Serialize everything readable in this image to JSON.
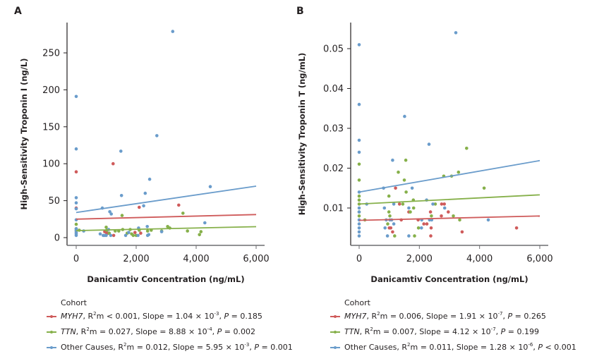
{
  "colors": {
    "MYH7": "#cf5b5b",
    "TTN": "#86b04a",
    "Other": "#6a9ccb",
    "axis": "#231f20"
  },
  "chart_data": [
    {
      "panel": "A",
      "type": "scatter",
      "xlabel": "Danicamtiv Concentration (ng/mL)",
      "ylabel": "High-Sensitivity Troponin I (ng/L)",
      "xlim": [
        0,
        6000
      ],
      "ylim": [
        0,
        290
      ],
      "xticks": [
        0,
        2000,
        4000,
        6000
      ],
      "xtick_labels": [
        "0",
        "2,000",
        "4,000",
        "6,000"
      ],
      "yticks": [
        0,
        50,
        100,
        150,
        200,
        250
      ],
      "ytick_labels": [
        "0",
        "50",
        "100",
        "150",
        "200",
        "250"
      ],
      "grid": false,
      "legend_title": "Cohort",
      "legend_position": "bottom",
      "series": [
        {
          "key": "MYH7",
          "name": "MYH7",
          "stats": {
            "r2m": "< 0.001",
            "slope": "1.04",
            "slope_exp": "-3",
            "p": "= 0.185"
          },
          "fit": [
            [
              0,
              25
            ],
            [
              6000,
              31.2
            ]
          ],
          "points": [
            [
              0,
              89
            ],
            [
              0,
              40
            ],
            [
              1230,
              100
            ],
            [
              2100,
              41
            ],
            [
              3420,
              44
            ],
            [
              950,
              8
            ],
            [
              1020,
              6
            ],
            [
              1060,
              6
            ],
            [
              1250,
              3
            ],
            [
              1960,
              7
            ],
            [
              2150,
              6
            ]
          ]
        },
        {
          "key": "TTN",
          "name": "TTN",
          "stats": {
            "r2m": "= 0.027",
            "slope": "8.88",
            "slope_exp": "-4",
            "p": "= 0.002"
          },
          "fit": [
            [
              0,
              9.5
            ],
            [
              6000,
              14.8
            ]
          ],
          "points": [
            [
              0,
              18
            ],
            [
              0,
              12
            ],
            [
              0,
              9
            ],
            [
              100,
              10
            ],
            [
              1000,
              14
            ],
            [
              1020,
              10
            ],
            [
              1100,
              6
            ],
            [
              1530,
              30
            ],
            [
              1300,
              9
            ],
            [
              1420,
              9
            ],
            [
              1550,
              11
            ],
            [
              1700,
              6
            ],
            [
              1800,
              11
            ],
            [
              1850,
              5
            ],
            [
              1900,
              3
            ],
            [
              2000,
              3
            ],
            [
              2100,
              10
            ],
            [
              2380,
              9
            ],
            [
              2500,
              10
            ],
            [
              2850,
              9
            ],
            [
              3050,
              15
            ],
            [
              3120,
              13
            ],
            [
              3560,
              33
            ],
            [
              3710,
              9
            ],
            [
              4110,
              4
            ],
            [
              4160,
              8
            ]
          ]
        },
        {
          "key": "Other",
          "name": "Other Causes",
          "stats": {
            "r2m": "= 0.012",
            "slope": "5.95",
            "slope_exp": "-3",
            "p": "= 0.001"
          },
          "fit": [
            [
              0,
              34
            ],
            [
              6000,
              69.7
            ]
          ],
          "points": [
            [
              0,
              191
            ],
            [
              0,
              120
            ],
            [
              0,
              54
            ],
            [
              0,
              47
            ],
            [
              0,
              39
            ],
            [
              0,
              24
            ],
            [
              0,
              12
            ],
            [
              0,
              10
            ],
            [
              0,
              7
            ],
            [
              0,
              5
            ],
            [
              0,
              3
            ],
            [
              250,
              9
            ],
            [
              800,
              5
            ],
            [
              870,
              40
            ],
            [
              900,
              3
            ],
            [
              950,
              3
            ],
            [
              1000,
              3
            ],
            [
              1080,
              11
            ],
            [
              1120,
              35
            ],
            [
              1170,
              32
            ],
            [
              1150,
              3
            ],
            [
              1490,
              117
            ],
            [
              1510,
              57
            ],
            [
              1650,
              3
            ],
            [
              1750,
              7
            ],
            [
              2060,
              3
            ],
            [
              2080,
              13
            ],
            [
              2250,
              43
            ],
            [
              2300,
              60
            ],
            [
              2370,
              15
            ],
            [
              2380,
              3
            ],
            [
              2420,
              4
            ],
            [
              2450,
              79
            ],
            [
              2690,
              138
            ],
            [
              2850,
              8
            ],
            [
              3220,
              279
            ],
            [
              4290,
              20
            ],
            [
              4470,
              69
            ]
          ]
        }
      ]
    },
    {
      "panel": "B",
      "type": "scatter",
      "xlabel": "Danicamtiv Concentration (ng/mL)",
      "ylabel": "High-Sensitivity Troponin T (ng/mL)",
      "xlim": [
        0,
        6000
      ],
      "ylim": [
        0,
        0.056
      ],
      "xticks": [
        0,
        2000,
        4000,
        6000
      ],
      "xtick_labels": [
        "0",
        "2,000",
        "4,000",
        "6,000"
      ],
      "yticks": [
        0.01,
        0.02,
        0.03,
        0.04,
        0.05
      ],
      "ytick_labels": [
        "0.01",
        "0.02",
        "0.03",
        "0.04",
        "0.05"
      ],
      "grid": false,
      "legend_title": "Cohort",
      "legend_position": "bottom",
      "series": [
        {
          "key": "MYH7",
          "name": "MYH7",
          "stats": {
            "r2m": "= 0.006",
            "slope": "1.91",
            "slope_exp": "-7",
            "p": "= 0.265"
          },
          "fit": [
            [
              0,
              0.0069
            ],
            [
              6000,
              0.008
            ]
          ],
          "points": [
            [
              1210,
              0.015
            ],
            [
              1340,
              0.011
            ],
            [
              1650,
              0.009
            ],
            [
              2370,
              0.009
            ],
            [
              2740,
              0.011
            ],
            [
              2830,
              0.011
            ],
            [
              2960,
              0.009
            ],
            [
              2730,
              0.008
            ],
            [
              5230,
              0.005
            ],
            [
              3420,
              0.004
            ],
            [
              2380,
              0.003
            ],
            [
              2390,
              0.005
            ],
            [
              1000,
              0.005
            ],
            [
              1050,
              0.005
            ],
            [
              1110,
              0.004
            ],
            [
              1400,
              0.007
            ],
            [
              1960,
              0.007
            ],
            [
              2150,
              0.006
            ],
            [
              2250,
              0.006
            ]
          ]
        },
        {
          "key": "TTN",
          "name": "TTN",
          "stats": {
            "r2m": "= 0.007",
            "slope": "4.12",
            "slope_exp": "-7",
            "p": "= 0.199"
          },
          "fit": [
            [
              0,
              0.011
            ],
            [
              6000,
              0.0133
            ]
          ],
          "points": [
            [
              0,
              0.021
            ],
            [
              0,
              0.017
            ],
            [
              0,
              0.013
            ],
            [
              0,
              0.012
            ],
            [
              0,
              0.011
            ],
            [
              0,
              0.009
            ],
            [
              0,
              0.008
            ],
            [
              190,
              0.007
            ],
            [
              990,
              0.013
            ],
            [
              990,
              0.009
            ],
            [
              1020,
              0.008
            ],
            [
              950,
              0.006
            ],
            [
              1180,
              0.003
            ],
            [
              1300,
              0.019
            ],
            [
              1500,
              0.017
            ],
            [
              1550,
              0.022
            ],
            [
              1560,
              0.014
            ],
            [
              1450,
              0.011
            ],
            [
              1700,
              0.009
            ],
            [
              1800,
              0.012
            ],
            [
              1810,
              0.01
            ],
            [
              1840,
              0.003
            ],
            [
              1970,
              0.005
            ],
            [
              2400,
              0.008
            ],
            [
              2530,
              0.011
            ],
            [
              2810,
              0.018
            ],
            [
              3070,
              0.018
            ],
            [
              3300,
              0.019
            ],
            [
              3130,
              0.008
            ],
            [
              3340,
              0.007
            ],
            [
              3570,
              0.025
            ],
            [
              4150,
              0.015
            ]
          ]
        },
        {
          "key": "Other",
          "name": "Other Causes",
          "stats": {
            "r2m": "= 0.011",
            "slope": "1.28",
            "slope_exp": "-6",
            "p": "< 0.001"
          },
          "fit": [
            [
              0,
              0.014
            ],
            [
              6000,
              0.0219
            ]
          ],
          "points": [
            [
              0,
              0.051
            ],
            [
              0,
              0.036
            ],
            [
              0,
              0.027
            ],
            [
              0,
              0.024
            ],
            [
              0,
              0.014
            ],
            [
              0,
              0.01
            ],
            [
              0,
              0.009
            ],
            [
              0,
              0.007
            ],
            [
              0,
              0.006
            ],
            [
              0,
              0.005
            ],
            [
              0,
              0.004
            ],
            [
              0,
              0.003
            ],
            [
              250,
              0.011
            ],
            [
              810,
              0.015
            ],
            [
              840,
              0.01
            ],
            [
              860,
              0.005
            ],
            [
              900,
              0.007
            ],
            [
              940,
              0.003
            ],
            [
              1020,
              0.007
            ],
            [
              1080,
              0.007
            ],
            [
              1110,
              0.022
            ],
            [
              1150,
              0.011
            ],
            [
              1150,
              0.006
            ],
            [
              1510,
              0.033
            ],
            [
              1650,
              0.01
            ],
            [
              1650,
              0.003
            ],
            [
              1760,
              0.015
            ],
            [
              2070,
              0.005
            ],
            [
              2080,
              0.007
            ],
            [
              2240,
              0.012
            ],
            [
              2320,
              0.026
            ],
            [
              2340,
              0.007
            ],
            [
              2410,
              0.007
            ],
            [
              2450,
              0.011
            ],
            [
              2840,
              0.01
            ],
            [
              3210,
              0.054
            ],
            [
              4290,
              0.007
            ]
          ]
        }
      ]
    }
  ]
}
